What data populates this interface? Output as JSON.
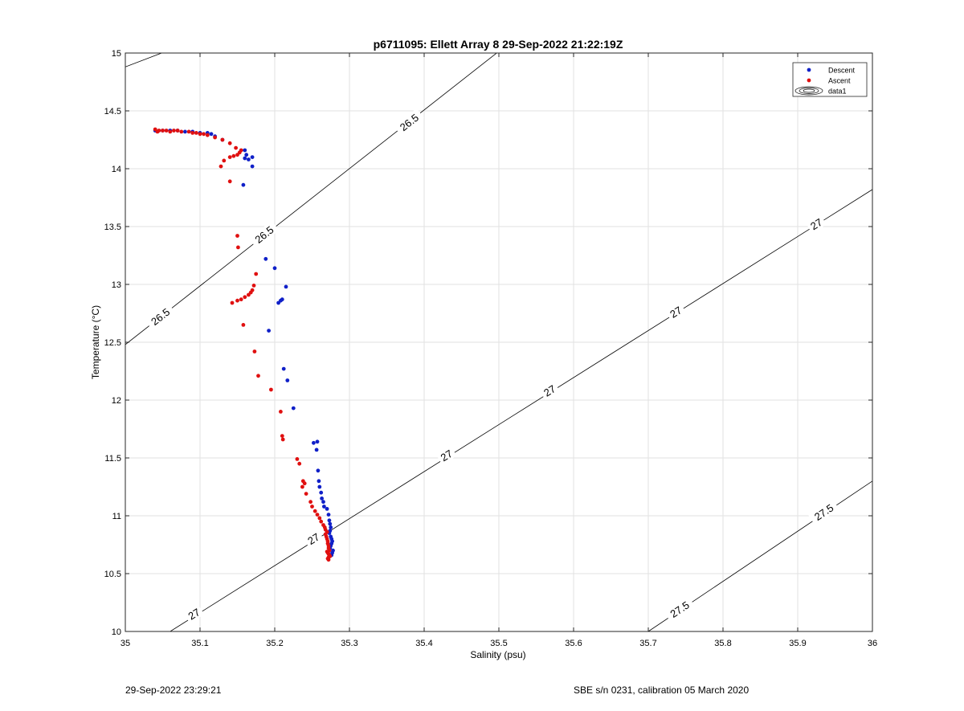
{
  "footer": {
    "left": "29-Sep-2022 23:29:21",
    "right": "SBE s/n 0231, calibration 05 March 2020"
  },
  "chart_data": {
    "type": "scatter",
    "title": "p6711095: Ellett Array 8 29-Sep-2022 21:22:19Z",
    "xlabel": "Salinity (psu)",
    "ylabel": "Temperature (°C)",
    "xlim": [
      35,
      36
    ],
    "ylim": [
      10,
      15
    ],
    "xticks": [
      35,
      35.1,
      35.2,
      35.3,
      35.4,
      35.5,
      35.6,
      35.7,
      35.8,
      35.9,
      36
    ],
    "xtick_labels": [
      "35",
      "35.1",
      "35.2",
      "35.3",
      "35.4",
      "35.5",
      "35.6",
      "35.7",
      "35.8",
      "35.9",
      "36"
    ],
    "yticks": [
      10,
      10.5,
      11,
      11.5,
      12,
      12.5,
      13,
      13.5,
      14,
      14.5,
      15
    ],
    "ytick_labels": [
      "10",
      "10.5",
      "11",
      "11.5",
      "12",
      "12.5",
      "13",
      "13.5",
      "14",
      "14.5",
      "15"
    ],
    "grid": true,
    "legend": {
      "placement": "top-right",
      "entries": [
        "Descent",
        "Ascent",
        "data1"
      ]
    },
    "colors": {
      "descent": "#1020c8",
      "ascent": "#e01010",
      "contour": "#000000",
      "grid": "#e2e2e2"
    },
    "series": [
      {
        "name": "Descent",
        "x": [
          35.04,
          35.05,
          35.06,
          35.07,
          35.08,
          35.09,
          35.1,
          35.11,
          35.115,
          35.12,
          35.13,
          35.16,
          35.162,
          35.165,
          35.17,
          35.16,
          35.17,
          35.158,
          35.188,
          35.2,
          35.208,
          35.205,
          35.21,
          35.215,
          35.192,
          35.212,
          35.217,
          35.225,
          35.252,
          35.257,
          35.256,
          35.258,
          35.259,
          35.26,
          35.262,
          35.263,
          35.265,
          35.266,
          35.27,
          35.272,
          35.273,
          35.274,
          35.275,
          35.274,
          35.273,
          35.275,
          35.276,
          35.277,
          35.276,
          35.275,
          35.274,
          35.278,
          35.277,
          35.276
        ],
        "y": [
          14.33,
          14.33,
          14.33,
          14.33,
          14.32,
          14.32,
          14.31,
          14.31,
          14.3,
          14.28,
          14.25,
          14.16,
          14.12,
          14.08,
          14.1,
          14.09,
          14.02,
          13.86,
          13.22,
          13.14,
          12.86,
          12.84,
          12.87,
          12.98,
          12.6,
          12.27,
          12.17,
          11.93,
          11.63,
          11.64,
          11.57,
          11.39,
          11.3,
          11.25,
          11.2,
          11.15,
          11.12,
          11.08,
          11.06,
          11.01,
          10.96,
          10.93,
          10.9,
          10.87,
          10.85,
          10.82,
          10.8,
          10.78,
          10.76,
          10.74,
          10.72,
          10.7,
          10.68,
          10.66
        ]
      },
      {
        "name": "Ascent",
        "x": [
          35.04,
          35.043,
          35.045,
          35.05,
          35.055,
          35.06,
          35.065,
          35.07,
          35.075,
          35.085,
          35.09,
          35.095,
          35.1,
          35.105,
          35.11,
          35.12,
          35.13,
          35.14,
          35.148,
          35.155,
          35.153,
          35.15,
          35.145,
          35.14,
          35.132,
          35.128,
          35.14,
          35.15,
          35.151,
          35.175,
          35.172,
          35.17,
          35.168,
          35.165,
          35.16,
          35.155,
          35.15,
          35.143,
          35.158,
          35.173,
          35.178,
          35.195,
          35.208,
          35.21,
          35.211,
          35.23,
          35.233,
          35.238,
          35.24,
          35.237,
          35.242,
          35.248,
          35.25,
          35.254,
          35.257,
          35.26,
          35.262,
          35.265,
          35.267,
          35.268,
          35.27,
          35.268,
          35.269,
          35.27,
          35.271,
          35.271,
          35.272,
          35.272,
          35.273,
          35.27,
          35.271,
          35.272,
          35.273,
          35.274,
          35.272,
          35.271,
          35.272
        ],
        "y": [
          14.34,
          14.32,
          14.33,
          14.33,
          14.33,
          14.32,
          14.33,
          14.33,
          14.32,
          14.32,
          14.31,
          14.31,
          14.3,
          14.3,
          14.29,
          14.27,
          14.25,
          14.22,
          14.18,
          14.16,
          14.14,
          14.12,
          14.11,
          14.1,
          14.07,
          14.02,
          13.89,
          13.42,
          13.32,
          13.09,
          12.99,
          12.95,
          12.93,
          12.91,
          12.89,
          12.87,
          12.86,
          12.84,
          12.65,
          12.42,
          12.21,
          12.09,
          11.9,
          11.69,
          11.66,
          11.49,
          11.45,
          11.3,
          11.28,
          11.25,
          11.19,
          11.12,
          11.08,
          11.04,
          11.01,
          10.98,
          10.95,
          10.92,
          10.9,
          10.88,
          10.86,
          10.84,
          10.82,
          10.8,
          10.78,
          10.76,
          10.74,
          10.72,
          10.7,
          10.69,
          10.68,
          10.67,
          10.66,
          10.65,
          10.64,
          10.63,
          10.62
        ]
      }
    ],
    "contours": [
      {
        "level": "26.5",
        "lines": [
          [
            [
              35.0,
              14.88
            ],
            [
              35.17,
              15.3
            ]
          ],
          [
            [
              35.0,
              12.48
            ],
            [
              36.0,
              17.55
            ]
          ]
        ],
        "labels": [
          {
            "x": 35.59,
            "y": 15.55
          },
          {
            "x": 35.38,
            "y": 14.4
          },
          {
            "x": 35.186,
            "y": 13.43
          },
          {
            "x": 35.047,
            "y": 12.72
          }
        ]
      },
      {
        "level": "27",
        "lines": [
          [
            [
              35.06,
              10.0
            ],
            [
              36.0,
              13.82
            ]
          ]
        ],
        "labels": [
          {
            "x": 35.925,
            "y": 13.52
          },
          {
            "x": 35.737,
            "y": 12.76
          },
          {
            "x": 35.568,
            "y": 12.08
          },
          {
            "x": 35.43,
            "y": 11.52
          },
          {
            "x": 35.252,
            "y": 10.8
          },
          {
            "x": 35.092,
            "y": 10.15
          }
        ]
      },
      {
        "level": "27.5",
        "lines": [
          [
            [
              35.7,
              10.0
            ],
            [
              36.0,
              11.3
            ]
          ]
        ],
        "labels": [
          {
            "x": 35.935,
            "y": 11.03
          },
          {
            "x": 35.742,
            "y": 10.19
          }
        ]
      }
    ]
  }
}
